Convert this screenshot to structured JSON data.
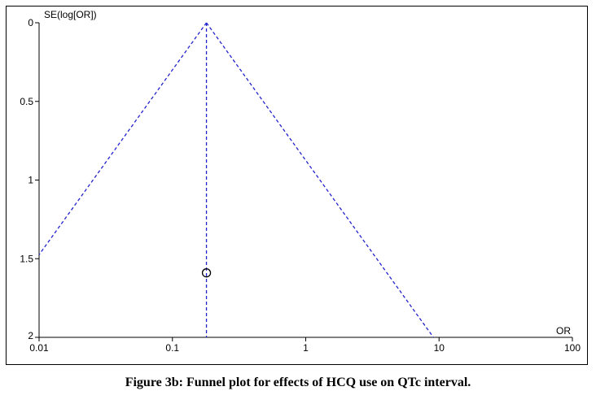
{
  "caption": "Figure 3b: Funnel plot for effects of HCQ use on QTc interval.",
  "chart_data": {
    "type": "scatter",
    "subtype": "funnel",
    "title": "",
    "xlabel": "OR",
    "ylabel": "SE(log[OR])",
    "x_scale": "log",
    "xlim": [
      0.01,
      100
    ],
    "ylim": [
      0,
      2
    ],
    "y_inverted": true,
    "x_ticks": [
      "0.01",
      "0.1",
      "1",
      "10",
      "100"
    ],
    "y_ticks": [
      "0",
      "0.5",
      "1",
      "1.5",
      "2"
    ],
    "pooled_or": 0.18,
    "funnel_confidence": 0.95,
    "points": [
      {
        "or": 0.18,
        "se": 1.59
      }
    ],
    "grid": false,
    "colors": {
      "funnel": "#2222cc",
      "points": "#000000",
      "axes": "#000000"
    }
  }
}
